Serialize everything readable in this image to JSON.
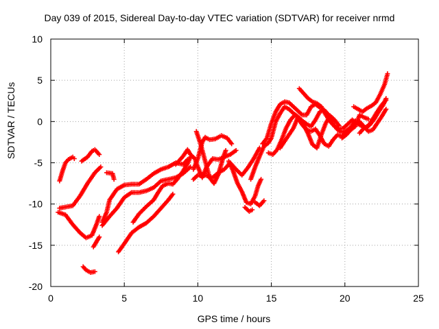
{
  "chart_data": {
    "type": "scatter",
    "title": "Day 039 of 2015, Sidereal Day-to-day VTEC variation (SDTVAR) for receiver nrmd",
    "xlabel": "GPS time / hours",
    "ylabel": "SDTVAR / TECUs",
    "xlim": [
      0,
      25
    ],
    "ylim": [
      -20,
      10
    ],
    "xticks": [
      0,
      5,
      10,
      15,
      20,
      25
    ],
    "yticks": [
      -20,
      -15,
      -10,
      -5,
      0,
      5,
      10
    ],
    "grid": true,
    "marker": "+",
    "color": "#ff0000",
    "series": [
      {
        "points": [
          [
            0.6,
            -7.2
          ],
          [
            0.8,
            -6.0
          ],
          [
            1.0,
            -5.0
          ],
          [
            1.2,
            -4.6
          ],
          [
            1.5,
            -4.3
          ],
          [
            1.6,
            -4.5
          ]
        ]
      },
      {
        "points": [
          [
            0.5,
            -11
          ],
          [
            1.0,
            -11.3
          ],
          [
            1.5,
            -12.5
          ],
          [
            2.0,
            -13.5
          ],
          [
            2.4,
            -14.1
          ],
          [
            2.8,
            -13.8
          ],
          [
            3.1,
            -12.5
          ],
          [
            3.3,
            -11.5
          ]
        ]
      },
      {
        "points": [
          [
            0.6,
            -10.5
          ],
          [
            1.2,
            -10.3
          ],
          [
            1.5,
            -10.2
          ],
          [
            2.0,
            -9.0
          ],
          [
            2.5,
            -7.5
          ],
          [
            3.0,
            -6.2
          ],
          [
            3.4,
            -5.5
          ]
        ]
      },
      {
        "points": [
          [
            2.1,
            -4.8
          ],
          [
            2.5,
            -4.3
          ],
          [
            2.8,
            -3.6
          ],
          [
            3.0,
            -3.4
          ],
          [
            3.3,
            -4.0
          ]
        ]
      },
      {
        "points": [
          [
            2.2,
            -17.6
          ],
          [
            2.4,
            -18.0
          ],
          [
            2.7,
            -18.3
          ],
          [
            3.0,
            -18.2
          ]
        ]
      },
      {
        "points": [
          [
            3.3,
            -14.0
          ],
          [
            3.1,
            -14.6
          ],
          [
            2.9,
            -15.2
          ]
        ]
      },
      {
        "points": [
          [
            3.8,
            -6.2
          ],
          [
            4.2,
            -6.3
          ],
          [
            4.3,
            -7.0
          ]
        ]
      },
      {
        "points": [
          [
            3.5,
            -12.2
          ],
          [
            3.8,
            -11.0
          ],
          [
            4.0,
            -9.5
          ],
          [
            4.5,
            -8.2
          ],
          [
            5.0,
            -7.7
          ],
          [
            5.5,
            -7.6
          ],
          [
            6.0,
            -7.6
          ],
          [
            6.5,
            -7.0
          ],
          [
            7.0,
            -6.3
          ],
          [
            7.5,
            -5.8
          ],
          [
            8.0,
            -5.5
          ],
          [
            8.5,
            -5.0
          ],
          [
            9.0,
            -5.2
          ],
          [
            9.3,
            -4.6
          ]
        ]
      },
      {
        "points": [
          [
            3.5,
            -12.6
          ],
          [
            4.0,
            -11.5
          ],
          [
            4.5,
            -10.5
          ],
          [
            5.0,
            -9.2
          ],
          [
            5.5,
            -8.6
          ],
          [
            6.0,
            -8.6
          ],
          [
            6.5,
            -8.4
          ],
          [
            7.0,
            -8.0
          ],
          [
            7.5,
            -7.2
          ],
          [
            8.0,
            -7.0
          ],
          [
            8.5,
            -6.8
          ],
          [
            9.0,
            -6.3
          ],
          [
            9.5,
            -5.5
          ]
        ]
      },
      {
        "points": [
          [
            4.6,
            -15.8
          ],
          [
            5.0,
            -14.8
          ],
          [
            5.5,
            -13.5
          ],
          [
            6.0,
            -12.8
          ],
          [
            6.5,
            -12.3
          ],
          [
            7.0,
            -11.5
          ],
          [
            7.5,
            -10.5
          ],
          [
            8.0,
            -9.5
          ],
          [
            8.3,
            -8.8
          ]
        ]
      },
      {
        "points": [
          [
            5.6,
            -12.2
          ],
          [
            6.0,
            -11.2
          ],
          [
            6.5,
            -10.3
          ],
          [
            7.0,
            -9.5
          ],
          [
            7.3,
            -8.6
          ],
          [
            7.6,
            -7.8
          ],
          [
            8.0,
            -7.5
          ],
          [
            8.3,
            -7.6
          ],
          [
            8.6,
            -7.0
          ],
          [
            9.0,
            -6.0
          ],
          [
            9.3,
            -5.1
          ],
          [
            9.5,
            -4.3
          ]
        ]
      },
      {
        "points": [
          [
            8.5,
            -5.2
          ],
          [
            9.0,
            -4.2
          ],
          [
            9.3,
            -3.4
          ],
          [
            9.5,
            -4.0
          ],
          [
            9.8,
            -4.5
          ],
          [
            10.0,
            -5.5
          ],
          [
            10.3,
            -6.8
          ],
          [
            10.6,
            -5.5
          ],
          [
            11.0,
            -4.5
          ],
          [
            11.4,
            -4.6
          ],
          [
            11.8,
            -4.3
          ],
          [
            12.2,
            -4.0
          ],
          [
            12.6,
            -3.5
          ]
        ]
      },
      {
        "points": [
          [
            9.7,
            -5.8
          ],
          [
            10.0,
            -4.5
          ],
          [
            10.3,
            -2.5
          ],
          [
            10.5,
            -1.9
          ],
          [
            10.8,
            -2.2
          ],
          [
            11.2,
            -2.1
          ],
          [
            11.6,
            -1.7
          ],
          [
            12.0,
            -2.0
          ],
          [
            12.3,
            -2.7
          ]
        ]
      },
      {
        "points": [
          [
            9.7,
            -7.0
          ],
          [
            10.0,
            -6.5
          ],
          [
            10.5,
            -6.5
          ],
          [
            11.0,
            -6.8
          ],
          [
            11.4,
            -6.2
          ],
          [
            11.8,
            -5.8
          ],
          [
            12.2,
            -5.0
          ],
          [
            12.6,
            -5.8
          ],
          [
            13.0,
            -6.5
          ],
          [
            13.4,
            -5.6
          ],
          [
            13.8,
            -4.5
          ],
          [
            14.2,
            -3.2
          ]
        ]
      },
      {
        "points": [
          [
            9.9,
            -1.2
          ],
          [
            10.2,
            -2.8
          ],
          [
            10.5,
            -4.8
          ],
          [
            10.8,
            -6.8
          ],
          [
            11.1,
            -7.5
          ],
          [
            11.4,
            -6.4
          ],
          [
            11.7,
            -4.5
          ],
          [
            11.9,
            -3.5
          ]
        ]
      },
      {
        "points": [
          [
            12.1,
            -4.8
          ],
          [
            12.4,
            -6.0
          ],
          [
            12.7,
            -7.5
          ],
          [
            13.0,
            -8.5
          ],
          [
            13.3,
            -9.8
          ],
          [
            13.6,
            -10.0
          ],
          [
            13.9,
            -9.0
          ],
          [
            14.1,
            -7.8
          ],
          [
            14.3,
            -7.0
          ]
        ]
      },
      {
        "points": [
          [
            13.2,
            -10.4
          ],
          [
            13.5,
            -10.9
          ],
          [
            13.7,
            -10.7
          ]
        ]
      },
      {
        "points": [
          [
            13.9,
            -9.8
          ],
          [
            14.2,
            -10.2
          ],
          [
            14.5,
            -9.6
          ]
        ]
      },
      {
        "points": [
          [
            13.6,
            -7.0
          ],
          [
            13.9,
            -5.5
          ],
          [
            14.2,
            -4.2
          ],
          [
            14.5,
            -3.0
          ],
          [
            14.8,
            -2.6
          ],
          [
            15.0,
            -2.0
          ],
          [
            15.3,
            0.0
          ],
          [
            15.6,
            1.0
          ],
          [
            15.9,
            1.8
          ],
          [
            16.2,
            1.5
          ],
          [
            16.5,
            1.0
          ],
          [
            16.8,
            0.6
          ],
          [
            17.1,
            0.1
          ],
          [
            17.4,
            -0.3
          ],
          [
            17.7,
            -0.6
          ],
          [
            18.0,
            0.2
          ],
          [
            18.3,
            1.2
          ],
          [
            18.6,
            1.4
          ],
          [
            18.9,
            0.8
          ],
          [
            19.2,
            -0.3
          ],
          [
            19.5,
            -1.0
          ],
          [
            19.8,
            -1.3
          ],
          [
            20.1,
            -1.1
          ],
          [
            20.4,
            -0.7
          ],
          [
            20.7,
            0.1
          ]
        ]
      },
      {
        "points": [
          [
            14.4,
            -2.7
          ],
          [
            14.7,
            -2.0
          ],
          [
            15.0,
            -0.2
          ],
          [
            15.3,
            1.2
          ],
          [
            15.6,
            2.1
          ],
          [
            15.9,
            2.4
          ],
          [
            16.2,
            2.3
          ],
          [
            16.5,
            1.8
          ],
          [
            16.8,
            1.3
          ],
          [
            17.1,
            0.8
          ],
          [
            17.4,
            0.8
          ],
          [
            17.7,
            1.8
          ],
          [
            18.0,
            2.1
          ],
          [
            18.3,
            1.7
          ]
        ]
      },
      {
        "points": [
          [
            14.8,
            -3.8
          ],
          [
            15.1,
            -4.0
          ],
          [
            15.4,
            -3.4
          ],
          [
            15.7,
            -2.2
          ],
          [
            16.0,
            -0.8
          ],
          [
            16.3,
            0.2
          ],
          [
            16.6,
            0.8
          ],
          [
            16.9,
            0.4
          ],
          [
            17.2,
            -0.4
          ],
          [
            17.5,
            -1.5
          ],
          [
            17.8,
            -2.8
          ],
          [
            18.1,
            -3.2
          ],
          [
            18.4,
            -1.6
          ],
          [
            18.7,
            -0.2
          ],
          [
            19.0,
            0.7
          ],
          [
            19.3,
            0.2
          ],
          [
            19.6,
            -0.5
          ]
        ]
      },
      {
        "points": [
          [
            15.6,
            -3.2
          ],
          [
            15.9,
            -2.4
          ],
          [
            16.2,
            -1.6
          ],
          [
            16.5,
            -0.8
          ],
          [
            16.8,
            0.5
          ],
          [
            17.1,
            -0.4
          ],
          [
            17.4,
            -1.0
          ],
          [
            17.7,
            -1.2
          ],
          [
            18.0,
            -0.9
          ],
          [
            18.3,
            -1.7
          ],
          [
            18.6,
            -2.7
          ],
          [
            18.9,
            -3.0
          ],
          [
            19.2,
            -2.2
          ],
          [
            19.5,
            -1.6
          ],
          [
            19.8,
            -1.8
          ],
          [
            20.1,
            -1.3
          ],
          [
            20.4,
            -1.0
          ],
          [
            20.7,
            -0.6
          ],
          [
            21.0,
            0.8
          ],
          [
            21.3,
            0.5
          ],
          [
            21.6,
            0.3
          ]
        ]
      },
      {
        "points": [
          [
            16.9,
            4.0
          ],
          [
            17.2,
            3.4
          ],
          [
            17.5,
            2.8
          ],
          [
            17.8,
            2.4
          ],
          [
            18.1,
            2.2
          ],
          [
            18.4,
            1.8
          ],
          [
            18.7,
            0.8
          ],
          [
            19.0,
            0.0
          ],
          [
            19.3,
            -0.6
          ],
          [
            19.6,
            -0.9
          ],
          [
            19.9,
            -0.8
          ],
          [
            20.2,
            -0.3
          ],
          [
            20.5,
            0.2
          ],
          [
            20.8,
            -0.2
          ],
          [
            21.1,
            -0.5
          ],
          [
            21.4,
            -0.8
          ],
          [
            21.7,
            -0.4
          ],
          [
            22.0,
            0.3
          ],
          [
            22.3,
            1.2
          ],
          [
            22.6,
            2.0
          ],
          [
            22.8,
            2.8
          ]
        ]
      },
      {
        "points": [
          [
            19.8,
            -2.0
          ],
          [
            20.1,
            -1.6
          ],
          [
            20.4,
            -1.0
          ],
          [
            20.7,
            -0.3
          ],
          [
            21.0,
            0.0
          ],
          [
            21.3,
            -0.6
          ],
          [
            21.6,
            -1.2
          ],
          [
            21.9,
            -1.0
          ],
          [
            22.2,
            -0.2
          ],
          [
            22.5,
            0.6
          ],
          [
            22.8,
            1.5
          ]
        ]
      },
      {
        "points": [
          [
            20.6,
            1.8
          ],
          [
            20.9,
            1.5
          ],
          [
            21.2,
            1.2
          ],
          [
            21.5,
            1.6
          ],
          [
            21.8,
            1.9
          ],
          [
            22.1,
            2.3
          ],
          [
            22.4,
            3.3
          ],
          [
            22.7,
            4.5
          ],
          [
            22.9,
            5.8
          ]
        ]
      },
      {
        "points": [
          [
            21.0,
            -1.4
          ],
          [
            21.3,
            -0.8
          ],
          [
            21.6,
            -0.5
          ],
          [
            21.9,
            0.3
          ],
          [
            22.2,
            1.2
          ],
          [
            22.5,
            2.0
          ],
          [
            22.8,
            2.6
          ]
        ]
      }
    ]
  }
}
